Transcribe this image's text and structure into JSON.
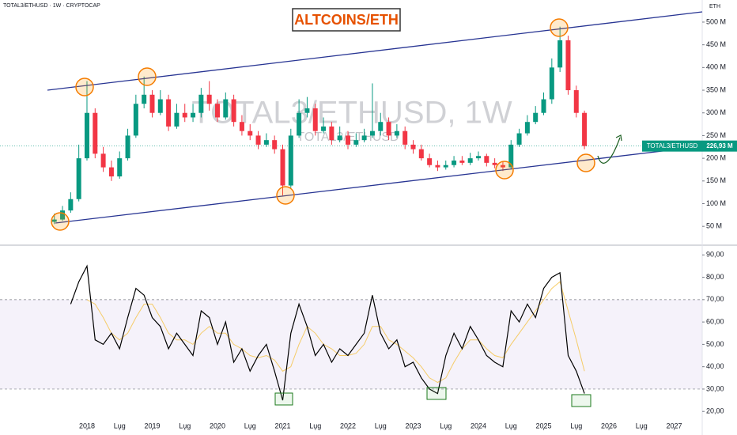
{
  "chart_data": [
    {
      "type": "candlestick",
      "symbol_info": "TOTAL3/ETHUSD · 1W · CRYPTOCAP",
      "title": "ALTCOINS/ETH",
      "watermark": "TOTAL3/ETHUSD, 1W",
      "watermark_sub": "TOTAL3/ETHUSD",
      "axis_unit": "ETH",
      "x": [
        2017.5,
        2017.625,
        2017.75,
        2017.875,
        2018,
        2018.125,
        2018.25,
        2018.375,
        2018.5,
        2018.625,
        2018.75,
        2018.875,
        2019,
        2019.125,
        2019.25,
        2019.375,
        2019.5,
        2019.625,
        2019.75,
        2019.875,
        2020,
        2020.125,
        2020.25,
        2020.375,
        2020.5,
        2020.625,
        2020.75,
        2020.875,
        2021,
        2021.125,
        2021.25,
        2021.375,
        2021.5,
        2021.625,
        2021.75,
        2021.875,
        2022,
        2022.125,
        2022.25,
        2022.375,
        2022.5,
        2022.625,
        2022.75,
        2022.875,
        2023,
        2023.125,
        2023.25,
        2023.375,
        2023.5,
        2023.625,
        2023.75,
        2023.875,
        2024,
        2024.125,
        2024.25,
        2024.375,
        2024.5,
        2024.625,
        2024.75,
        2024.875,
        2025,
        2025.125,
        2025.25,
        2025.375,
        2025.5,
        2025.625
      ],
      "series": [
        {
          "name": "TOTAL3/ETHUSD",
          "up_color": "#089981",
          "down_color": "#f23645",
          "open": [
            60,
            65,
            85,
            110,
            200,
            300,
            210,
            180,
            160,
            200,
            250,
            320,
            340,
            300,
            330,
            270,
            300,
            290,
            300,
            340,
            320,
            290,
            330,
            280,
            260,
            250,
            230,
            240,
            220,
            140,
            250,
            300,
            310,
            260,
            270,
            240,
            250,
            230,
            240,
            250,
            260,
            280,
            250,
            260,
            230,
            220,
            200,
            185,
            180,
            185,
            195,
            190,
            200,
            205,
            190,
            185,
            180,
            230,
            255,
            280,
            300,
            330,
            400,
            460,
            350,
            300
          ],
          "high": [
            78,
            95,
            125,
            230,
            370,
            310,
            225,
            195,
            215,
            265,
            340,
            380,
            350,
            350,
            340,
            320,
            320,
            320,
            355,
            370,
            330,
            345,
            340,
            295,
            275,
            260,
            255,
            250,
            230,
            265,
            330,
            335,
            320,
            290,
            280,
            270,
            260,
            255,
            265,
            365,
            300,
            290,
            275,
            270,
            240,
            230,
            210,
            195,
            195,
            205,
            205,
            212,
            215,
            210,
            200,
            192,
            240,
            265,
            295,
            315,
            345,
            420,
            490,
            470,
            360,
            305
          ],
          "low": [
            55,
            62,
            80,
            105,
            195,
            200,
            170,
            150,
            155,
            195,
            245,
            310,
            290,
            295,
            260,
            265,
            280,
            280,
            290,
            305,
            280,
            285,
            270,
            250,
            240,
            220,
            225,
            210,
            118,
            135,
            245,
            290,
            250,
            255,
            230,
            235,
            220,
            225,
            235,
            245,
            250,
            240,
            245,
            220,
            210,
            195,
            180,
            172,
            175,
            180,
            185,
            185,
            195,
            182,
            178,
            172,
            175,
            225,
            250,
            275,
            295,
            320,
            390,
            340,
            290,
            220
          ],
          "close": [
            65,
            85,
            110,
            200,
            300,
            210,
            180,
            160,
            200,
            250,
            320,
            340,
            300,
            330,
            270,
            300,
            290,
            300,
            340,
            320,
            290,
            330,
            280,
            260,
            250,
            230,
            240,
            220,
            140,
            250,
            300,
            310,
            260,
            270,
            240,
            250,
            230,
            240,
            250,
            260,
            280,
            250,
            260,
            230,
            220,
            200,
            185,
            180,
            185,
            195,
            190,
            200,
            205,
            190,
            185,
            180,
            230,
            255,
            280,
            300,
            330,
            400,
            460,
            350,
            300,
            227
          ]
        }
      ],
      "last_price": {
        "value": 226.93,
        "label": "226,93 M"
      },
      "xlim": [
        2016.667,
        2027.43
      ],
      "ylim": [
        12,
        540
      ],
      "yticks": [
        {
          "value": 500,
          "label": "500 M"
        },
        {
          "value": 450,
          "label": "450 M"
        },
        {
          "value": 400,
          "label": "400 M"
        },
        {
          "value": 350,
          "label": "350 M"
        },
        {
          "value": 300,
          "label": "300 M"
        },
        {
          "value": 250,
          "label": "250 M"
        },
        {
          "value": 200,
          "label": "200 M"
        },
        {
          "value": 150,
          "label": "150 M"
        },
        {
          "value": 100,
          "label": "100 M"
        },
        {
          "value": 50,
          "label": "50 M"
        }
      ]
    },
    {
      "type": "line",
      "x": [
        2017.5,
        2017.625,
        2017.75,
        2017.875,
        2018,
        2018.125,
        2018.25,
        2018.375,
        2018.5,
        2018.625,
        2018.75,
        2018.875,
        2019,
        2019.125,
        2019.25,
        2019.375,
        2019.5,
        2019.625,
        2019.75,
        2019.875,
        2020,
        2020.125,
        2020.25,
        2020.375,
        2020.5,
        2020.625,
        2020.75,
        2020.875,
        2021,
        2021.125,
        2021.25,
        2021.375,
        2021.5,
        2021.625,
        2021.75,
        2021.875,
        2022,
        2022.125,
        2022.25,
        2022.375,
        2022.5,
        2022.625,
        2022.75,
        2022.875,
        2023,
        2023.125,
        2023.25,
        2023.375,
        2023.5,
        2023.625,
        2023.75,
        2023.875,
        2024,
        2024.125,
        2024.25,
        2024.375,
        2024.5,
        2024.625,
        2024.75,
        2024.875,
        2025,
        2025.125,
        2025.25,
        2025.375,
        2025.5,
        2025.625
      ],
      "series": [
        {
          "color": "#000000",
          "values": [
            null,
            null,
            68,
            78,
            85,
            52,
            50,
            55,
            48,
            62,
            75,
            72,
            62,
            58,
            48,
            55,
            50,
            45,
            65,
            62,
            50,
            60,
            42,
            48,
            38,
            45,
            50,
            38,
            25,
            55,
            68,
            58,
            45,
            50,
            42,
            48,
            45,
            50,
            55,
            72,
            55,
            48,
            52,
            40,
            42,
            35,
            30,
            28,
            45,
            55,
            48,
            58,
            52,
            45,
            42,
            40,
            65,
            60,
            68,
            62,
            75,
            80,
            82,
            45,
            38,
            28
          ]
        },
        {
          "color": "#f5c242",
          "values": [
            null,
            null,
            null,
            null,
            70,
            68,
            62,
            55,
            52,
            55,
            62,
            68,
            68,
            62,
            55,
            52,
            52,
            50,
            55,
            58,
            55,
            55,
            50,
            48,
            45,
            44,
            45,
            43,
            38,
            40,
            50,
            58,
            55,
            50,
            48,
            45,
            45,
            46,
            50,
            58,
            58,
            52,
            50,
            47,
            44,
            40,
            35,
            33,
            35,
            42,
            48,
            52,
            52,
            48,
            45,
            44,
            50,
            55,
            60,
            65,
            70,
            75,
            78,
            65,
            52,
            38
          ]
        }
      ],
      "band": [
        30,
        70
      ],
      "band_color": "#7e57c2",
      "xlim": [
        2016.667,
        2027.43
      ],
      "ylim": [
        13,
        94
      ],
      "yticks": [
        {
          "value": 90,
          "label": "90,00"
        },
        {
          "value": 80,
          "label": "80,00"
        },
        {
          "value": 70,
          "label": "70,00"
        },
        {
          "value": 60,
          "label": "60,00"
        },
        {
          "value": 50,
          "label": "50,00"
        },
        {
          "value": 40,
          "label": "40,00"
        },
        {
          "value": 30,
          "label": "30,00"
        },
        {
          "value": 20,
          "label": "20,00"
        }
      ],
      "xticks": [
        2018,
        {
          "value": 2018.5,
          "label": "Lug"
        },
        2019,
        {
          "value": 2019.5,
          "label": "Lug"
        },
        2020,
        {
          "value": 2020.5,
          "label": "Lug"
        },
        2021,
        {
          "value": 2021.5,
          "label": "Lug"
        },
        2022,
        {
          "value": 2022.5,
          "label": "Lug"
        },
        2023,
        {
          "value": 2023.5,
          "label": "Lug"
        },
        2024,
        {
          "value": 2024.5,
          "label": "Lug"
        },
        2025,
        {
          "value": 2025.5,
          "label": "Lug"
        },
        2026,
        {
          "value": 2026.5,
          "label": "Lug"
        },
        2027
      ]
    }
  ]
}
